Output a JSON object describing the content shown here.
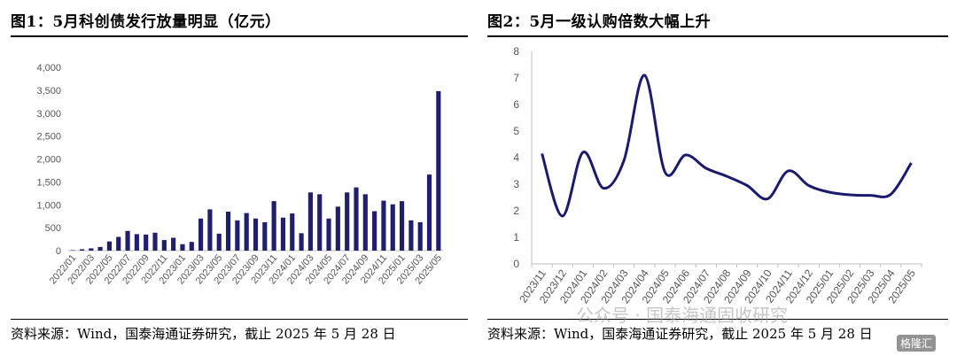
{
  "left": {
    "title": "图1：5月科创债发行放量明显（亿元）",
    "source": "资料来源：Wind，国泰海通证券研究，截止 2025 年 5 月 28 日"
  },
  "right": {
    "title": "图2：5月一级认购倍数大幅上升",
    "source": "资料来源：Wind，国泰海通证券研究，截止 2025 年 5 月 28 日"
  },
  "watermark": "公众号 · 国泰海通固收研究",
  "logo_text": "格隆汇",
  "chart_data": [
    {
      "type": "bar",
      "color": "#1f1f6e",
      "categories": [
        "2022/01",
        "2022/02",
        "2022/03",
        "2022/04",
        "2022/05",
        "2022/06",
        "2022/07",
        "2022/08",
        "2022/09",
        "2022/10",
        "2022/11",
        "2022/12",
        "2023/01",
        "2023/02",
        "2023/03",
        "2023/04",
        "2023/05",
        "2023/06",
        "2023/07",
        "2023/08",
        "2023/09",
        "2023/10",
        "2023/11",
        "2023/12",
        "2024/01",
        "2024/02",
        "2024/03",
        "2024/04",
        "2024/05",
        "2024/06",
        "2024/07",
        "2024/08",
        "2024/09",
        "2024/10",
        "2024/11",
        "2024/12",
        "2025/01",
        "2025/02",
        "2025/03",
        "2025/04",
        "2025/05"
      ],
      "tick_labels": [
        "2022/01",
        "2022/03",
        "2022/05",
        "2022/07",
        "2022/09",
        "2022/11",
        "2023/01",
        "2023/03",
        "2023/05",
        "2023/07",
        "2023/09",
        "2023/11",
        "2024/01",
        "2024/03",
        "2024/05",
        "2024/07",
        "2024/09",
        "2024/11",
        "2025/01",
        "2025/03",
        "2025/05"
      ],
      "values": [
        10,
        30,
        50,
        80,
        200,
        300,
        430,
        360,
        350,
        390,
        230,
        280,
        140,
        190,
        700,
        900,
        370,
        850,
        660,
        820,
        700,
        620,
        1080,
        720,
        810,
        380,
        1270,
        1230,
        700,
        960,
        1270,
        1380,
        1230,
        860,
        1090,
        1010,
        1080,
        660,
        620,
        1660,
        3480
      ],
      "ylim": [
        0,
        4000
      ],
      "yticks": [
        0,
        500,
        1000,
        1500,
        2000,
        2500,
        3000,
        3500,
        4000
      ],
      "ytick_labels": [
        "0",
        "500",
        "1,000",
        "1,500",
        "2,000",
        "2,500",
        "3,000",
        "3,500",
        "4,000"
      ],
      "grid": false
    },
    {
      "type": "line",
      "color": "#1a1a6e",
      "categories": [
        "2023/11",
        "2023/12",
        "2024/01",
        "2024/02",
        "2024/03",
        "2024/04",
        "2024/05",
        "2024/06",
        "2024/07",
        "2024/08",
        "2024/09",
        "2024/10",
        "2024/11",
        "2024/12",
        "2025/01",
        "2025/02",
        "2025/03",
        "2025/04",
        "2025/05"
      ],
      "values": [
        4.15,
        1.8,
        4.2,
        2.85,
        3.9,
        7.1,
        3.45,
        4.1,
        3.6,
        3.3,
        2.95,
        2.45,
        3.5,
        2.95,
        2.7,
        2.6,
        2.58,
        2.62,
        3.8
      ],
      "ylim": [
        0,
        8
      ],
      "yticks": [
        0,
        1,
        2,
        3,
        4,
        5,
        6,
        7,
        8
      ],
      "grid": false
    }
  ]
}
